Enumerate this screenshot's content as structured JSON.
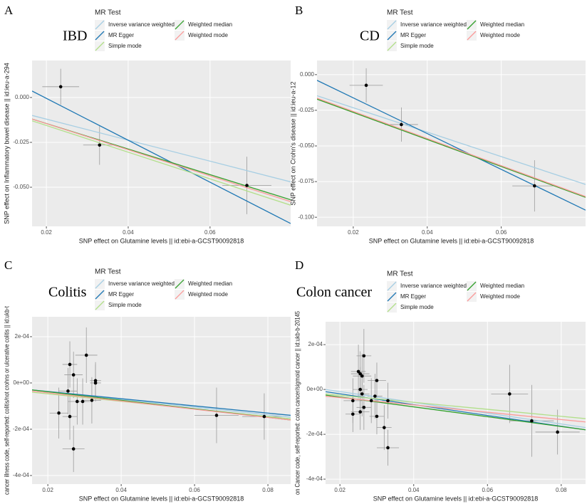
{
  "chart_data": [
    {
      "type": "scatter",
      "panel": "A",
      "title": "IBD",
      "legend_title": "MR Test",
      "xlabel": "SNP effect on Glutamine levels || id:ebi-a-GCST90092818",
      "ylabel": "SNP effect on Inflammatory bowel disease || id:ieu-a-294",
      "xlim": [
        0.0165,
        0.0797
      ],
      "ylim": [
        -0.0718,
        0.0206
      ],
      "xticks": [
        0.02,
        0.04,
        0.06
      ],
      "yticks": [
        {
          "value": 0,
          "label": "0.000"
        },
        -0.025,
        {
          "value": -0.05,
          "label": "-0.050"
        }
      ],
      "grid": true,
      "points": {
        "color": "#000000",
        "x": [
          0.0235,
          0.033,
          0.069
        ],
        "values": [
          0.006,
          -0.0265,
          -0.049
        ],
        "x_err": [
          0.0045,
          0.004,
          0.006
        ],
        "y_err": [
          0.01,
          0.011,
          0.016
        ]
      },
      "series": [
        {
          "name": "Inverse variance weighted",
          "color": "#a6cee3",
          "x": [
            0.0165,
            0.0797
          ],
          "values": [
            -0.01,
            -0.047
          ]
        },
        {
          "name": "MR Egger",
          "color": "#1f78b4",
          "x": [
            0.0165,
            0.0797
          ],
          "values": [
            0.0036,
            -0.0702
          ]
        },
        {
          "name": "Simple mode",
          "color": "#b2df8a",
          "x": [
            0.0165,
            0.0797
          ],
          "values": [
            -0.013,
            -0.06
          ]
        },
        {
          "name": "Weighted median",
          "color": "#33a02c",
          "x": [
            0.0165,
            0.0797
          ],
          "values": [
            -0.012,
            -0.057
          ]
        },
        {
          "name": "Weighted mode",
          "color": "#fb9a99",
          "x": [
            0.0165,
            0.0797
          ],
          "values": [
            -0.012,
            -0.058
          ]
        }
      ]
    },
    {
      "type": "scatter",
      "panel": "B",
      "title": "CD",
      "legend_title": "MR Test",
      "xlabel": "SNP effect on Glutamine levels || id:ebi-a-GCST90092818",
      "ylabel": "SNP effect on Crohn's disease || id:ieu-a-12",
      "xlim": [
        0.0102,
        0.0828
      ],
      "ylim": [
        -0.1064,
        0.0099
      ],
      "xticks": [
        0.02,
        0.04,
        0.06
      ],
      "yticks": [
        {
          "value": 0,
          "label": "0.000"
        },
        -0.025,
        {
          "value": -0.05,
          "label": "-0.050"
        },
        -0.075,
        {
          "value": -0.1,
          "label": "-0.100"
        }
      ],
      "grid": true,
      "points": {
        "color": "#000000",
        "x": [
          0.0235,
          0.033,
          0.069
        ],
        "values": [
          -0.0075,
          -0.035,
          -0.078
        ],
        "x_err": [
          0.0045,
          0.0045,
          0.006
        ],
        "y_err": [
          0.012,
          0.012,
          0.018
        ]
      },
      "series": [
        {
          "name": "Inverse variance weighted",
          "color": "#a6cee3",
          "x": [
            0.0102,
            0.0828
          ],
          "values": [
            -0.0148,
            -0.077
          ]
        },
        {
          "name": "MR Egger",
          "color": "#1f78b4",
          "x": [
            0.0102,
            0.0828
          ],
          "values": [
            -0.004,
            -0.095
          ]
        },
        {
          "name": "Simple mode",
          "color": "#b2df8a",
          "x": [
            0.0102,
            0.0828
          ],
          "values": [
            -0.017,
            -0.086
          ]
        },
        {
          "name": "Weighted median",
          "color": "#33a02c",
          "x": [
            0.0102,
            0.0828
          ],
          "values": [
            -0.0172,
            -0.086
          ]
        },
        {
          "name": "Weighted mode",
          "color": "#fb9a99",
          "x": [
            0.0102,
            0.0828
          ],
          "values": [
            -0.0165,
            -0.0855
          ]
        }
      ]
    },
    {
      "type": "scatter",
      "panel": "C",
      "title": "Colitis",
      "legend_title": "MR Test",
      "xlabel": "SNP effect on Glutamine levels || id:ebi-a-GCST90092818",
      "ylabel": "cancer illness code, self-reported: colitis/not crohns or ulcerative colitis || id:ukb-t",
      "xlim": [
        0.0157,
        0.0862
      ],
      "ylim": [
        -0.000437,
        0.000286
      ],
      "xticks": [
        0.02,
        0.04,
        0.06,
        0.08
      ],
      "yticks": [
        {
          "value": 0.0002,
          "label": "2e-04"
        },
        {
          "value": 0,
          "label": "0e+00"
        },
        {
          "value": -0.0002,
          "label": "-2e-04"
        },
        {
          "value": -0.0004,
          "label": "-4e-04"
        }
      ],
      "grid": true,
      "points": {
        "color": "#000000",
        "x": [
          0.026,
          0.027,
          0.0305,
          0.0255,
          0.023,
          0.026,
          0.028,
          0.0295,
          0.032,
          0.033,
          0.033,
          0.027,
          0.066,
          0.079
        ],
        "values": [
          8e-05,
          3.5e-05,
          0.00012,
          -3.5e-05,
          -0.00013,
          -0.000145,
          -8e-05,
          -8e-05,
          -7.5e-05,
          0.0,
          1e-05,
          -0.000285,
          -0.00014,
          -0.000145
        ],
        "x_err": [
          0.002,
          0.0025,
          0.003,
          0.0025,
          0.0025,
          0.002,
          0.0025,
          0.002,
          0.0025,
          0.0015,
          0.0015,
          0.003,
          0.006,
          0.006
        ],
        "y_err": [
          0.0001,
          0.0001,
          0.00012,
          0.0001,
          0.00011,
          0.0001,
          0.0001,
          0.0001,
          0.0001,
          8e-05,
          8e-05,
          0.0001,
          0.00012,
          0.0001
        ]
      },
      "series": [
        {
          "name": "Inverse variance weighted",
          "color": "#a6cee3",
          "x": [
            0.0157,
            0.0862
          ],
          "values": [
            -3e-05,
            -0.000148
          ]
        },
        {
          "name": "MR Egger",
          "color": "#1f78b4",
          "x": [
            0.0157,
            0.0862
          ],
          "values": [
            -3e-05,
            -0.00014
          ]
        },
        {
          "name": "Simple mode",
          "color": "#b2df8a",
          "x": [
            0.0157,
            0.0862
          ],
          "values": [
            -4e-05,
            -0.000155
          ]
        },
        {
          "name": "Weighted median",
          "color": "#33a02c",
          "x": [
            0.0157,
            0.0862
          ],
          "values": [
            -3e-05,
            -0.00016
          ]
        },
        {
          "name": "Weighted mode",
          "color": "#fb9a99",
          "x": [
            0.0157,
            0.0862
          ],
          "values": [
            -3.5e-05,
            -0.00016
          ]
        }
      ]
    },
    {
      "type": "scatter",
      "panel": "D",
      "title": "Colon cancer",
      "legend_title": "MR Test",
      "xlabel": "SNP effect on Glutamine levels || id:ebi-a-GCST90092818",
      "ylabel": "on Cancer code, self-reported: colon cancer/sigmoid cancer || id:ukb-b-20145",
      "xlim": [
        0.0161,
        0.0866
      ],
      "ylim": [
        -0.000422,
        0.000302
      ],
      "xticks": [
        0.02,
        0.04,
        0.06,
        0.08
      ],
      "yticks": [
        {
          "value": 0.0002,
          "label": "2e-04"
        },
        {
          "value": 0,
          "label": "0e+00"
        },
        {
          "value": -0.0002,
          "label": "-2e-04"
        },
        {
          "value": -0.0004,
          "label": "-4e-04"
        }
      ],
      "grid": true,
      "points": {
        "color": "#000000",
        "x": [
          0.0265,
          0.0255,
          0.025,
          0.026,
          0.0255,
          0.026,
          0.0235,
          0.0265,
          0.0255,
          0.0235,
          0.0295,
          0.03,
          0.03,
          0.0285,
          0.032,
          0.033,
          0.033,
          0.066,
          0.072,
          0.079
        ],
        "values": [
          0.00015,
          7e-05,
          8e-05,
          6e-05,
          0.0,
          -2e-05,
          -5e-05,
          -8e-05,
          -0.0001,
          -0.00011,
          -3e-05,
          4e-05,
          -0.00012,
          -5e-05,
          -0.00017,
          -0.00026,
          -5e-05,
          -2e-05,
          -0.00014,
          -0.00019
        ],
        "x_err": [
          0.002,
          0.0025,
          0.002,
          0.0025,
          0.002,
          0.002,
          0.0025,
          0.002,
          0.0025,
          0.002,
          0.002,
          0.0025,
          0.002,
          0.002,
          0.002,
          0.003,
          0.0015,
          0.005,
          0.006,
          0.006
        ],
        "y_err": [
          0.00012,
          0.0001,
          0.00012,
          0.0001,
          0.0001,
          0.0001,
          0.0001,
          0.0001,
          8e-05,
          8e-05,
          0.0001,
          8e-05,
          8e-05,
          0.0001,
          0.0001,
          8e-05,
          8e-05,
          0.00013,
          0.00016,
          0.0001
        ]
      },
      "series": [
        {
          "name": "Inverse variance weighted",
          "color": "#a6cee3",
          "x": [
            0.0161,
            0.0866
          ],
          "values": [
            0.0,
            -0.00017
          ]
        },
        {
          "name": "MR Egger",
          "color": "#1f78b4",
          "x": [
            0.0161,
            0.0866
          ],
          "values": [
            -1e-05,
            -0.00018
          ]
        },
        {
          "name": "Simple mode",
          "color": "#b2df8a",
          "x": [
            0.0161,
            0.0866
          ],
          "values": [
            -2e-05,
            -0.00013
          ]
        },
        {
          "name": "Weighted median",
          "color": "#33a02c",
          "x": [
            0.0161,
            0.0866
          ],
          "values": [
            -2.5e-05,
            -0.00018
          ]
        },
        {
          "name": "Weighted mode",
          "color": "#fb9a99",
          "x": [
            0.0161,
            0.0866
          ],
          "values": [
            -3e-05,
            -0.000145
          ]
        }
      ]
    }
  ]
}
